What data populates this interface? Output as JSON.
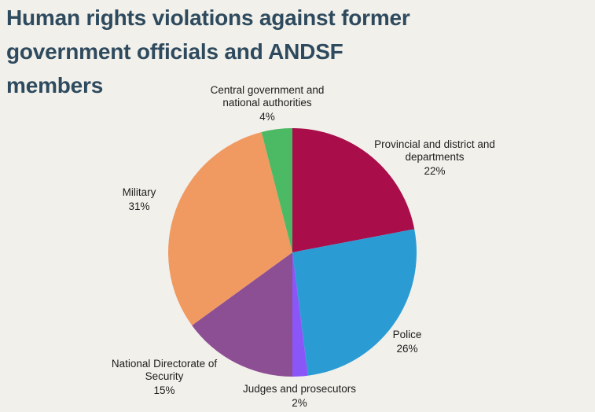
{
  "page": {
    "background": "#f2f0ea",
    "title_color": "#2e4a5e",
    "title_lines": [
      "Human rights violations against former",
      "government officials and ANDSF",
      "members"
    ]
  },
  "chart_data": {
    "type": "pie",
    "title": "Human rights violations against former government officials and ANDSF members",
    "start_angle_deg": 0,
    "direction": "clockwise",
    "legend_position": "outside-labels",
    "slices": [
      {
        "label": "Provincial and district and departments",
        "label_lines": [
          "Provincial and district and",
          "departments"
        ],
        "value": 22,
        "pct_label": "22%",
        "color": "#a90d4a"
      },
      {
        "label": "Police",
        "label_lines": [
          "Police"
        ],
        "value": 26,
        "pct_label": "26%",
        "color": "#2b9cd3"
      },
      {
        "label": "Judges and prosecutors",
        "label_lines": [
          "Judges and prosecutors"
        ],
        "value": 2,
        "pct_label": "2%",
        "color": "#8a56f8"
      },
      {
        "label": "National Directorate of Security",
        "label_lines": [
          "National Directorate of",
          "Security"
        ],
        "value": 15,
        "pct_label": "15%",
        "color": "#8d4f94"
      },
      {
        "label": "Military",
        "label_lines": [
          "Military"
        ],
        "value": 31,
        "pct_label": "31%",
        "color": "#f09a62"
      },
      {
        "label": "Central government and national authorities",
        "label_lines": [
          "Central government and",
          "national authorities"
        ],
        "value": 4,
        "pct_label": "4%",
        "color": "#4cba64"
      }
    ]
  }
}
